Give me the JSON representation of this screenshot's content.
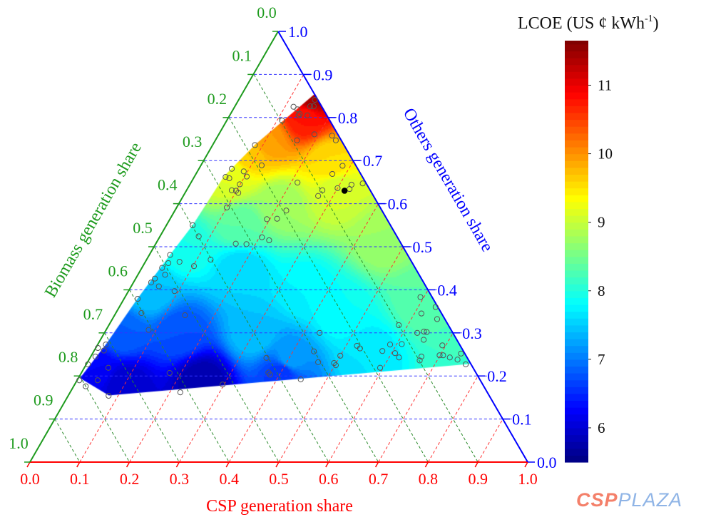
{
  "chart_data": {
    "type": "ternary-contour",
    "axes": {
      "bottom": {
        "label": "CSP generation share",
        "color": "#ff0000",
        "ticks": [
          "0.0",
          "0.1",
          "0.2",
          "0.3",
          "0.4",
          "0.5",
          "0.6",
          "0.7",
          "0.8",
          "0.9",
          "1.0"
        ]
      },
      "left": {
        "label": "Biomass generation share",
        "color": "#1e9b1e",
        "ticks": [
          "0.0",
          "0.1",
          "0.2",
          "0.3",
          "0.4",
          "0.5",
          "0.6",
          "0.7",
          "0.8",
          "0.9",
          "1.0"
        ]
      },
      "right": {
        "label": "Others generation share",
        "color": "#0000ff",
        "ticks": [
          "0.0",
          "0.1",
          "0.2",
          "0.3",
          "0.4",
          "0.5",
          "0.6",
          "0.7",
          "0.8",
          "0.9",
          "1.0"
        ]
      }
    },
    "grid": true,
    "colorbar": {
      "title_prefix": "LCOE (US ¢ kWh",
      "title_sup": "-1",
      "title_suffix": ")",
      "ticks": [
        6,
        7,
        8,
        9,
        10,
        11
      ],
      "range": [
        5.5,
        11.65
      ],
      "colormap": "jet",
      "step": 0.1
    },
    "surface": {
      "region_csp_others": [
        [
          0.145,
          0.855
        ],
        [
          0.084,
          0.737
        ],
        [
          0.058,
          0.664
        ],
        [
          0.052,
          0.55
        ],
        [
          0.041,
          0.482
        ],
        [
          0.026,
          0.377
        ],
        [
          0.016,
          0.275
        ],
        [
          0.003,
          0.195
        ],
        [
          0.081,
          0.155
        ],
        [
          0.772,
          0.228
        ]
      ],
      "lcoe_samples": [
        {
          "csp": 0.14,
          "others": 0.85,
          "lcoe": 11.5
        },
        {
          "csp": 0.15,
          "others": 0.8,
          "lcoe": 10.8
        },
        {
          "csp": 0.1,
          "others": 0.75,
          "lcoe": 10.0
        },
        {
          "csp": 0.08,
          "others": 0.72,
          "lcoe": 9.7
        },
        {
          "csp": 0.25,
          "others": 0.7,
          "lcoe": 9.6
        },
        {
          "csp": 0.07,
          "others": 0.66,
          "lcoe": 9.2
        },
        {
          "csp": 0.3,
          "others": 0.63,
          "lcoe": 9.1
        },
        {
          "csp": 0.2,
          "others": 0.6,
          "lcoe": 8.8
        },
        {
          "csp": 0.15,
          "others": 0.55,
          "lcoe": 8.4
        },
        {
          "csp": 0.45,
          "others": 0.52,
          "lcoe": 8.8
        },
        {
          "csp": 0.06,
          "others": 0.5,
          "lcoe": 8.0
        },
        {
          "csp": 0.2,
          "others": 0.45,
          "lcoe": 7.6
        },
        {
          "csp": 0.04,
          "others": 0.4,
          "lcoe": 7.5
        },
        {
          "csp": 0.35,
          "others": 0.4,
          "lcoe": 7.8
        },
        {
          "csp": 0.6,
          "others": 0.38,
          "lcoe": 8.4
        },
        {
          "csp": 0.45,
          "others": 0.35,
          "lcoe": 7.9
        },
        {
          "csp": 0.03,
          "others": 0.3,
          "lcoe": 6.9
        },
        {
          "csp": 0.15,
          "others": 0.3,
          "lcoe": 6.8
        },
        {
          "csp": 0.3,
          "others": 0.3,
          "lcoe": 7.5
        },
        {
          "csp": 0.55,
          "others": 0.25,
          "lcoe": 7.7
        },
        {
          "csp": 0.75,
          "others": 0.24,
          "lcoe": 8.2
        },
        {
          "csp": 0.4,
          "others": 0.24,
          "lcoe": 7.3
        },
        {
          "csp": 0.02,
          "others": 0.22,
          "lcoe": 6.3
        },
        {
          "csp": 0.4,
          "others": 0.21,
          "lcoe": 6.6
        },
        {
          "csp": 0.25,
          "others": 0.19,
          "lcoe": 5.8
        },
        {
          "csp": 0.1,
          "others": 0.18,
          "lcoe": 6.0
        }
      ]
    },
    "points_csp_others": [
      [
        0.117,
        0.825
      ],
      [
        0.128,
        0.819
      ],
      [
        0.138,
        0.808
      ],
      [
        0.137,
        0.805
      ],
      [
        0.15,
        0.826
      ],
      [
        0.157,
        0.826
      ],
      [
        0.152,
        0.841
      ],
      [
        0.155,
        0.805
      ],
      [
        0.11,
        0.793
      ],
      [
        0.191,
        0.761
      ],
      [
        0.228,
        0.758
      ],
      [
        0.241,
        0.747
      ],
      [
        0.163,
        0.747
      ],
      [
        0.084,
        0.736
      ],
      [
        0.121,
        0.689
      ],
      [
        0.065,
        0.681
      ],
      [
        0.092,
        0.675
      ],
      [
        0.104,
        0.663
      ],
      [
        0.062,
        0.662
      ],
      [
        0.071,
        0.659
      ],
      [
        0.099,
        0.645
      ],
      [
        0.09,
        0.631
      ],
      [
        0.099,
        0.63
      ],
      [
        0.106,
        0.625
      ],
      [
        0.213,
        0.649
      ],
      [
        0.273,
        0.669
      ],
      [
        0.284,
        0.688
      ],
      [
        0.324,
        0.644
      ],
      [
        0.325,
        0.634
      ],
      [
        0.3,
        0.636
      ],
      [
        0.272,
        0.631
      ],
      [
        0.27,
        0.618
      ],
      [
        0.345,
        0.647
      ],
      [
        0.1,
        0.591
      ],
      [
        0.223,
        0.584
      ],
      [
        0.194,
        0.564
      ],
      [
        0.214,
        0.565
      ],
      [
        0.052,
        0.55
      ],
      [
        0.077,
        0.524
      ],
      [
        0.16,
        0.507
      ],
      [
        0.182,
        0.506
      ],
      [
        0.205,
        0.522
      ],
      [
        0.223,
        0.515
      ],
      [
        0.041,
        0.481
      ],
      [
        0.047,
        0.462
      ],
      [
        0.068,
        0.465
      ],
      [
        0.102,
        0.455
      ],
      [
        0.128,
        0.47
      ],
      [
        0.04,
        0.451
      ],
      [
        0.054,
        0.435
      ],
      [
        0.038,
        0.426
      ],
      [
        0.035,
        0.417
      ],
      [
        0.055,
        0.408
      ],
      [
        0.092,
        0.397
      ],
      [
        0.027,
        0.379
      ],
      [
        0.051,
        0.346
      ],
      [
        0.141,
        0.341
      ],
      [
        0.085,
        0.307
      ],
      [
        0.016,
        0.273
      ],
      [
        0.004,
        0.265
      ],
      [
        0.019,
        0.259
      ],
      [
        0.009,
        0.245
      ],
      [
        0.003,
        0.227
      ],
      [
        0.048,
        0.219
      ],
      [
        0.041,
        0.19
      ],
      [
        0.004,
        0.19
      ],
      [
        0.024,
        0.176
      ],
      [
        0.081,
        0.154
      ],
      [
        0.177,
        0.207
      ],
      [
        0.221,
        0.162
      ],
      [
        0.297,
        0.18
      ],
      [
        0.354,
        0.242
      ],
      [
        0.375,
        0.208
      ],
      [
        0.381,
        0.203
      ],
      [
        0.448,
        0.192
      ],
      [
        0.432,
        0.3
      ],
      [
        0.442,
        0.257
      ],
      [
        0.463,
        0.232
      ],
      [
        0.496,
        0.23
      ],
      [
        0.502,
        0.225
      ],
      [
        0.5,
        0.247
      ],
      [
        0.522,
        0.27
      ],
      [
        0.531,
        0.264
      ],
      [
        0.594,
        0.219
      ],
      [
        0.579,
        0.258
      ],
      [
        0.587,
        0.273
      ],
      [
        0.607,
        0.253
      ],
      [
        0.62,
        0.243
      ],
      [
        0.582,
        0.318
      ],
      [
        0.61,
        0.274
      ],
      [
        0.628,
        0.3
      ],
      [
        0.64,
        0.303
      ],
      [
        0.646,
        0.302
      ],
      [
        0.649,
        0.284
      ],
      [
        0.664,
        0.245
      ],
      [
        0.665,
        0.236
      ],
      [
        0.593,
        0.383
      ],
      [
        0.614,
        0.345
      ],
      [
        0.652,
        0.332
      ],
      [
        0.635,
        0.36
      ],
      [
        0.693,
        0.271
      ],
      [
        0.699,
        0.248
      ],
      [
        0.706,
        0.248
      ],
      [
        0.722,
        0.243
      ],
      [
        0.74,
        0.238
      ],
      [
        0.74,
        0.252
      ],
      [
        0.762,
        0.227
      ]
    ],
    "highlight_point_csp_others": [
      0.317,
      0.63
    ]
  },
  "logo": {
    "part1": "CSP",
    "part2": "PLAZA"
  }
}
